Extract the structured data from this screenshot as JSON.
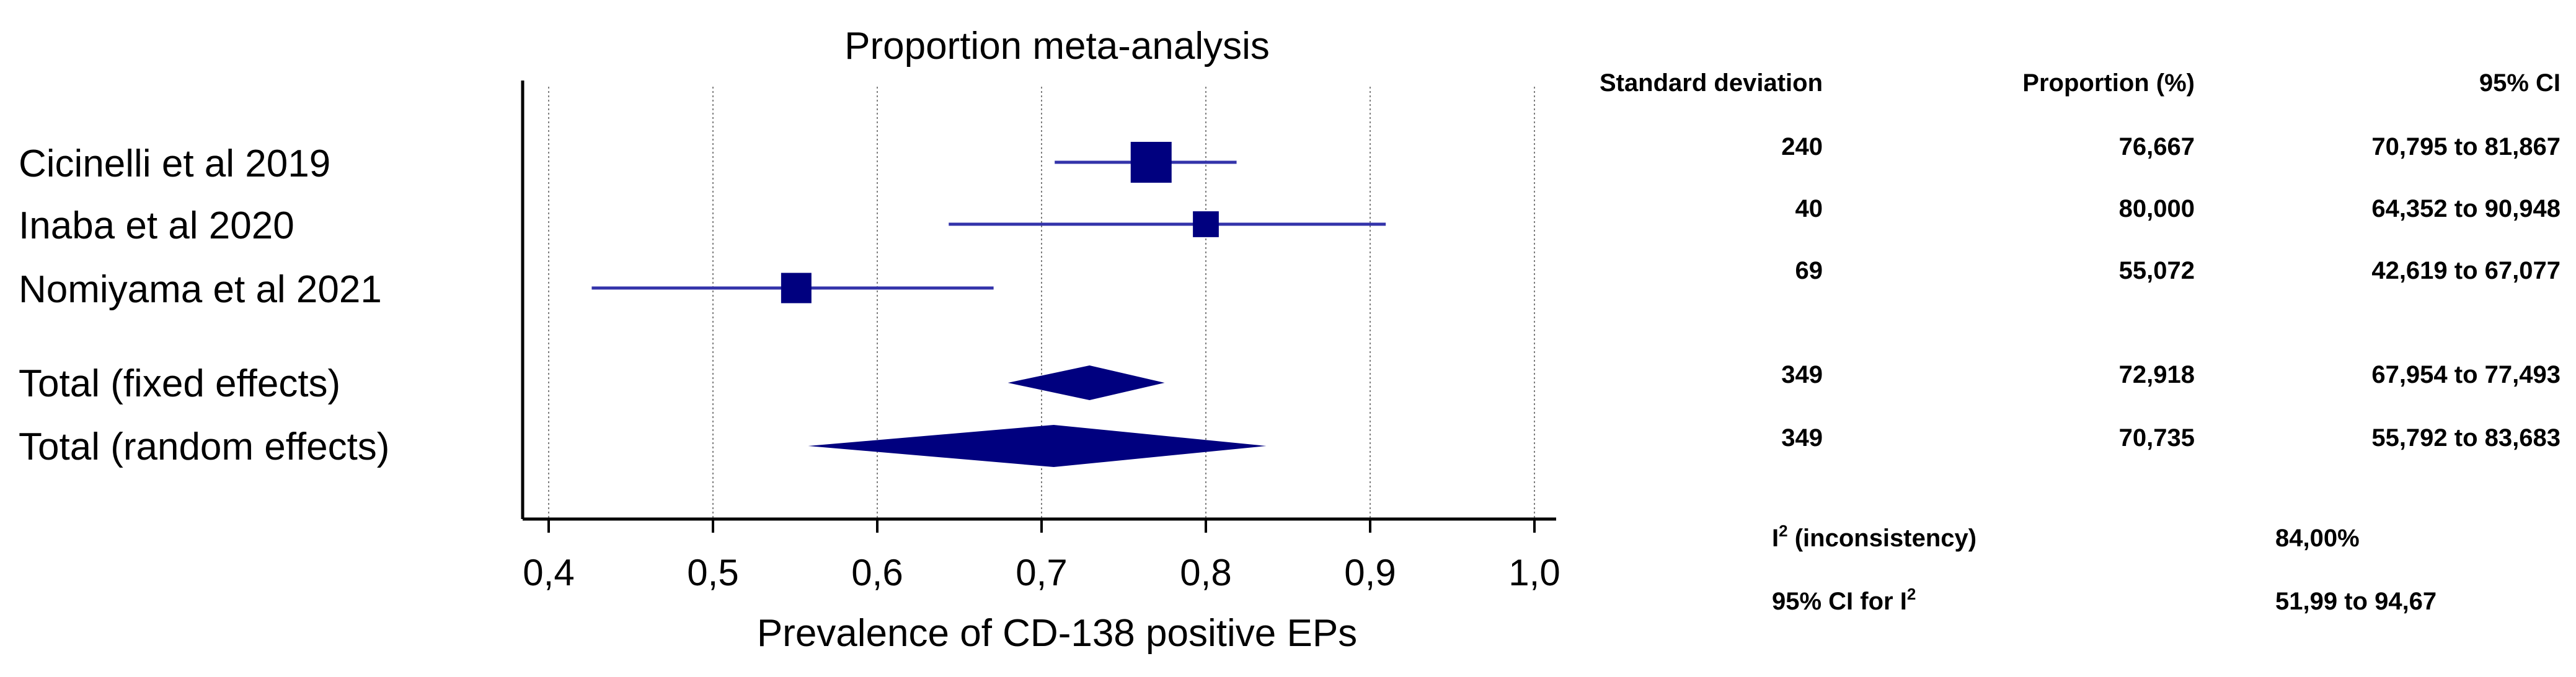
{
  "chart_data": {
    "type": "forest",
    "title": "Proportion meta-analysis",
    "xlabel": "Prevalence of CD-138 positive EPs",
    "xlim": [
      0.4,
      1.0
    ],
    "xticks": [
      0.4,
      0.5,
      0.6,
      0.7,
      0.8,
      0.9,
      1.0
    ],
    "xtick_labels": [
      "0,4",
      "0,5",
      "0,6",
      "0,7",
      "0,8",
      "0,9",
      "1,0"
    ],
    "grid": true,
    "marker_color": "#00007f",
    "line_color": "#3333aa",
    "studies": [
      {
        "label": "Cicinelli et al 2019",
        "n": "240",
        "proportion": "76,667",
        "ci": "70,795 to 81,867",
        "est": 0.7667,
        "lo": 0.708,
        "hi": 0.8187,
        "weight": 1.0
      },
      {
        "label": "Inaba et al 2020",
        "n": "40",
        "proportion": "80,000",
        "ci": "64,352 to 90,948",
        "est": 0.8,
        "lo": 0.6435,
        "hi": 0.9095,
        "weight": 0.4
      },
      {
        "label": "Nomiyama et al 2021",
        "n": "69",
        "proportion": "55,072",
        "ci": "42,619 to 67,077",
        "est": 0.5507,
        "lo": 0.4262,
        "hi": 0.6708,
        "weight": 0.55
      }
    ],
    "totals": [
      {
        "label": "Total (fixed effects)",
        "n": "349",
        "proportion": "72,918",
        "ci": "67,954 to 77,493",
        "est": 0.7292,
        "lo": 0.6795,
        "hi": 0.7749
      },
      {
        "label": "Total (random effects)",
        "n": "349",
        "proportion": "70,735",
        "ci": "55,792 to 83,683",
        "est": 0.7074,
        "lo": 0.5579,
        "hi": 0.8368
      }
    ],
    "columns": {
      "n": "Standard deviation",
      "proportion": "Proportion (%)",
      "ci": "95% CI"
    },
    "heterogeneity": {
      "i2_label_main": "I",
      "i2_label_sup": "2",
      "i2_label_rest": " (inconsistency)",
      "i2_value": "84,00%",
      "ci_label_main": "95% CI for I",
      "ci_label_sup": "2",
      "ci_value": "51,99 to 94,67"
    }
  }
}
